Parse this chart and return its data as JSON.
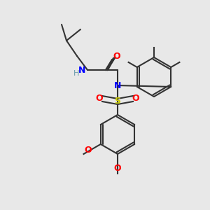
{
  "bg_color": "#e8e8e8",
  "atom_colors": {
    "N": "#0000ff",
    "O": "#ff0000",
    "S": "#cccc00",
    "C": "#000000",
    "H": "#6699aa"
  },
  "bond_color": "#333333",
  "font_size": 9,
  "figsize": [
    3.0,
    3.0
  ],
  "dpi": 100
}
